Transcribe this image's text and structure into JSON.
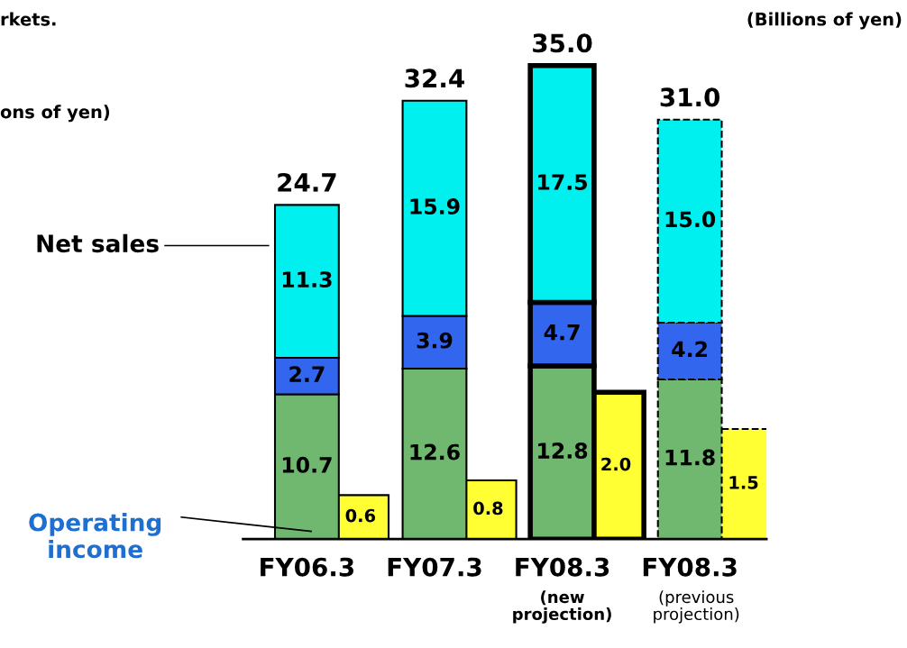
{
  "chart_data": {
    "type": "bar",
    "stacked": true,
    "categories": [
      "FY06.3",
      "FY07.3",
      "FY08.3\n(new\nprojection)",
      "FY08.3\n(previous\nprojection)"
    ],
    "series": [
      {
        "color": "#70b870",
        "values": [
          10.7,
          12.6,
          12.8,
          11.8
        ],
        "value_labels": [
          "10.7",
          "12.6",
          "12.8",
          "11.8"
        ]
      },
      {
        "color": "#3366ee",
        "values": [
          2.7,
          3.9,
          4.7,
          4.2
        ],
        "value_labels": [
          "2.7",
          "3.9",
          "4.7",
          "4.2"
        ]
      },
      {
        "color": "#00f0f0",
        "values": [
          11.3,
          15.9,
          17.5,
          15.0
        ],
        "value_labels": [
          "11.3",
          "15.9",
          "17.5",
          "15.0"
        ]
      },
      {
        "type": "bar",
        "axis": "y2",
        "color": "#ffff33",
        "values": [
          0.6,
          0.8,
          2.0,
          1.5
        ],
        "value_labels": [
          "0.6",
          "0.8",
          "2.0",
          "1.5"
        ]
      }
    ],
    "totals": [
      "24.7",
      "32.4",
      "35.0",
      "31.0"
    ],
    "grid": false,
    "legend": false,
    "annotations": [
      "Net sales",
      "Operating\nincome",
      "rkets.",
      "ons of yen)",
      "(Billions of yen)"
    ]
  }
}
